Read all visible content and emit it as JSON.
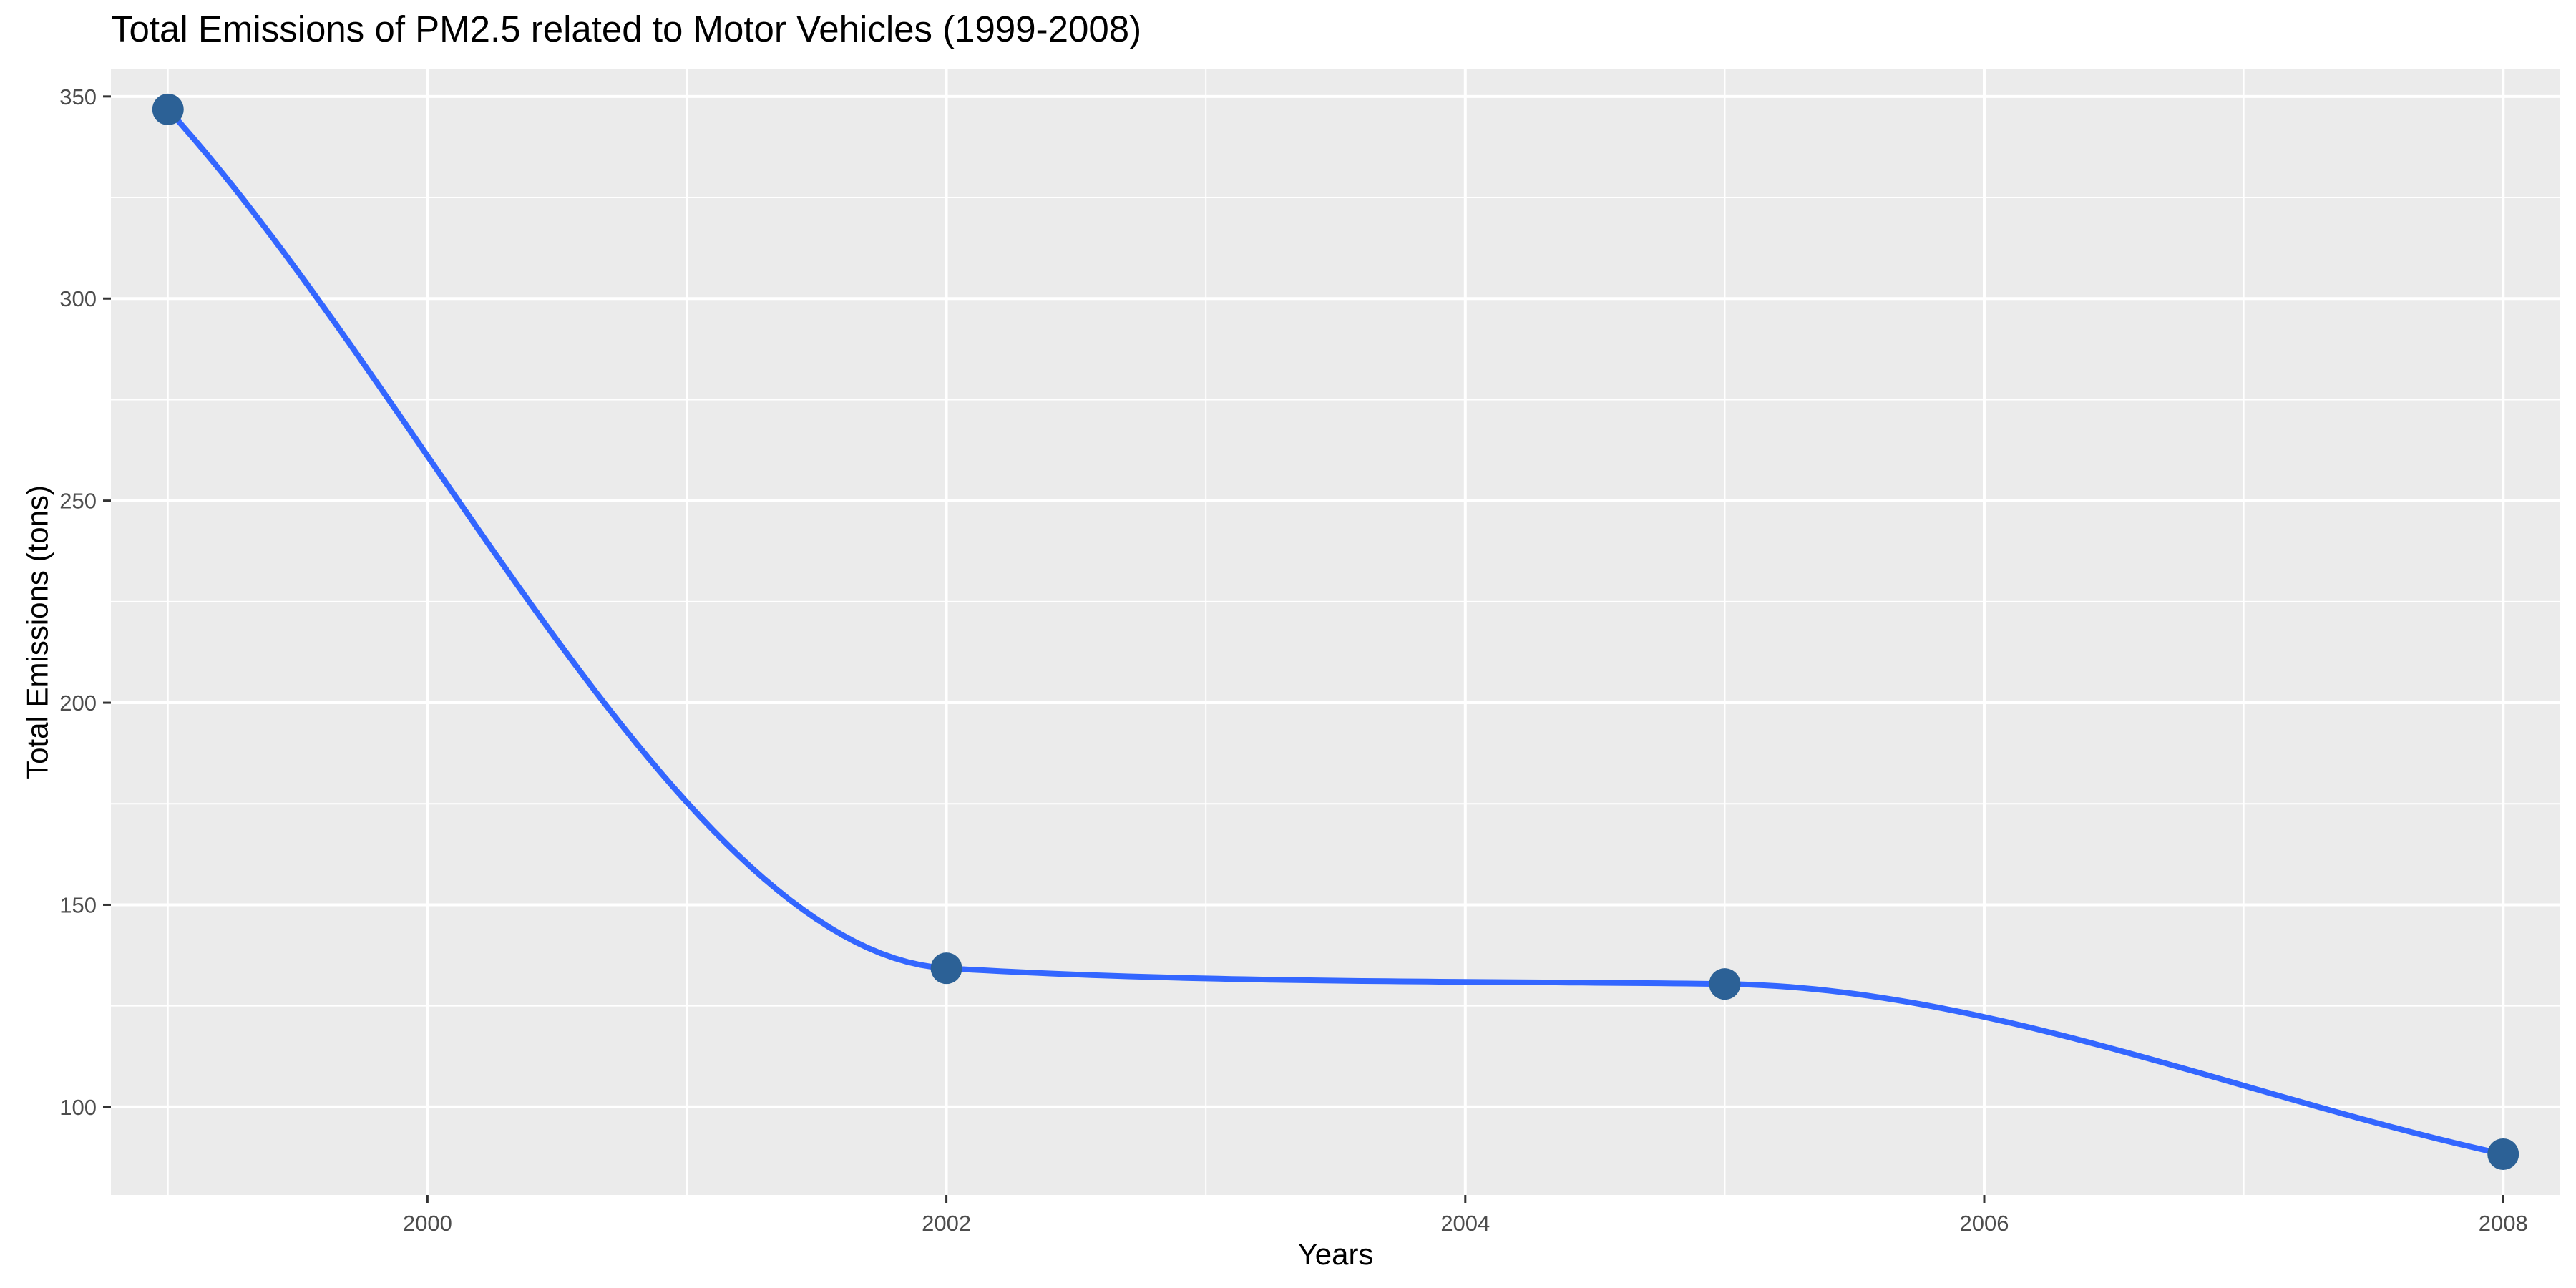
{
  "chart_data": {
    "type": "line",
    "title": "Total Emissions of PM2.5 related to Motor Vehicles (1999-2008)",
    "xlabel": "Years",
    "ylabel": "Total Emissions (tons)",
    "x": [
      1999,
      2002,
      2005,
      2008
    ],
    "series": [
      {
        "values": [
          346.8,
          134.3,
          130.4,
          88.3
        ]
      }
    ],
    "xlim": [
      1998.78,
      2008.22
    ],
    "ylim": [
      78.2,
      356.7
    ],
    "x_ticks": [
      2000,
      2002,
      2004,
      2006,
      2008
    ],
    "x_tick_labels": [
      "2000",
      "2002",
      "2004",
      "2006",
      "2008"
    ],
    "y_ticks": [
      100,
      150,
      200,
      250,
      300,
      350
    ],
    "y_tick_labels": [
      "100",
      "150",
      "200",
      "250",
      "300",
      "350"
    ],
    "grid": true,
    "smooth_line": true,
    "colors": {
      "panel_background": "#ebebeb",
      "grid_major": "#ffffff",
      "line": "#3366ff",
      "point": "#2c6196"
    }
  }
}
